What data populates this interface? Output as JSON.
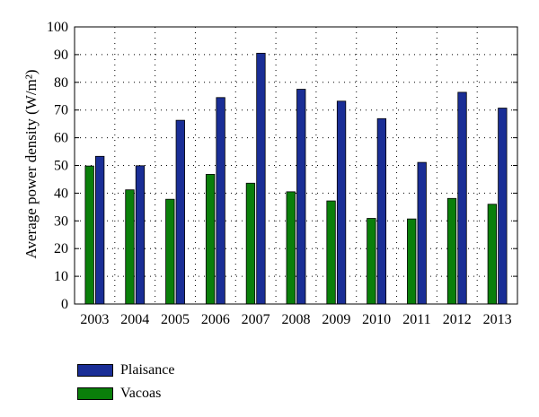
{
  "chart_data": {
    "type": "bar",
    "ylabel": "Average power density (W/m²)",
    "categories": [
      "2003",
      "2004",
      "2005",
      "2006",
      "2007",
      "2008",
      "2009",
      "2010",
      "2011",
      "2012",
      "2013"
    ],
    "series": [
      {
        "name": "Vacoas",
        "color": "#0a7f0a",
        "values": [
          49.8,
          41.2,
          37.8,
          46.8,
          43.6,
          40.5,
          37.2,
          30.9,
          30.7,
          38.1,
          36.0
        ]
      },
      {
        "name": "Plaisance",
        "color": "#1a2e96",
        "values": [
          53.3,
          49.9,
          66.3,
          74.5,
          90.5,
          77.5,
          73.2,
          66.9,
          51.1,
          76.4,
          70.7
        ]
      }
    ],
    "ylim": [
      0,
      100
    ],
    "yticks": [
      0,
      10,
      20,
      30,
      40,
      50,
      60,
      70,
      80,
      90,
      100
    ],
    "grid": true,
    "legend_position": "bottom-left"
  },
  "legend": {
    "items": [
      {
        "label": "Plaisance",
        "color": "#1a2e96"
      },
      {
        "label": "Vacoas",
        "color": "#0a7f0a"
      }
    ]
  }
}
